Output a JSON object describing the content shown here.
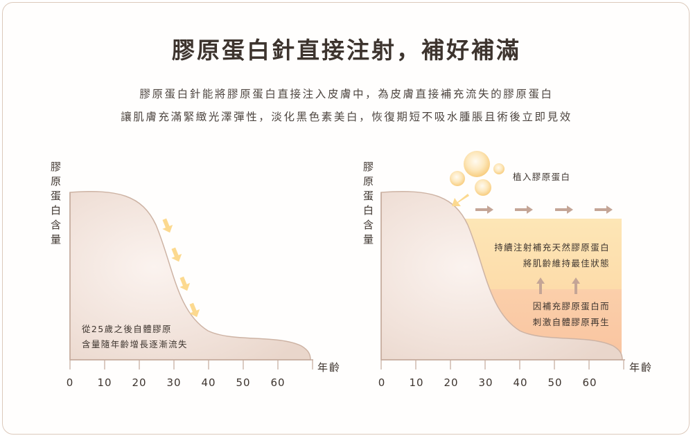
{
  "title": "膠原蛋白針直接注射，補好補滿",
  "subtitle_line1": "膠原蛋白針能將膠原蛋白直接注入皮膚中，為皮膚直接補充流失的膠原蛋白",
  "subtitle_line2": "讓肌膚充滿緊緻光澤彈性，淡化黑色素美白，恢復期短不吸水腫脹且術後立即見效",
  "left_chart": {
    "y_label": "膠原蛋白含量",
    "x_label": "年齡",
    "x_ticks": [
      "0",
      "10",
      "20",
      "30",
      "40",
      "50",
      "60"
    ],
    "note_line1": "從25歲之後自體膠原",
    "note_line2": "含量隨年齡增長逐漸流失"
  },
  "right_chart": {
    "y_label": "膠原蛋白含量",
    "x_label": "年齡",
    "x_ticks": [
      "0",
      "10",
      "20",
      "30",
      "40",
      "50",
      "60"
    ],
    "implant_label": "植入膠原蛋白",
    "box_top_line1": "持續注射補充天然膠原蛋白",
    "box_top_line2": "將肌齡維持最佳狀態",
    "box_bottom_line1": "因補充膠原蛋白而",
    "box_bottom_line2": "刺激自體膠原再生"
  },
  "colors": {
    "curve_fill": "#efe2db",
    "curve_stroke": "#cdb3a4",
    "box_top": "#fde3b0",
    "box_bottom": "#fbc8a5",
    "down_arrow": "#fcd98f",
    "side_arrow": "#c4a596",
    "text": "#3d342e"
  }
}
